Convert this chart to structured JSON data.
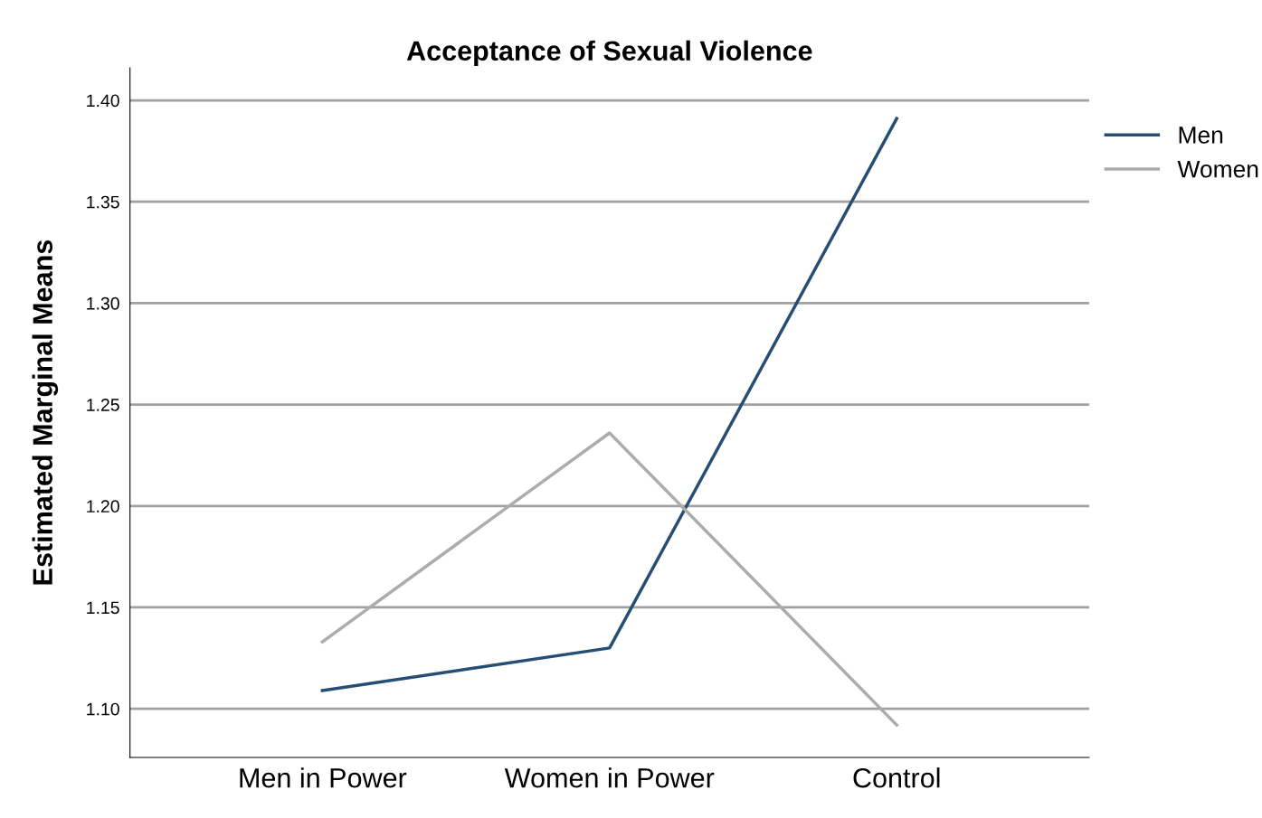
{
  "chart_data": {
    "type": "line",
    "title": "Acceptance of Sexual Violence",
    "ylabel": "Estimated Marginal Means",
    "categories": [
      "Men in Power",
      "Women in Power",
      "Control"
    ],
    "series": [
      {
        "name": "Men",
        "color": "#264d73",
        "values": [
          1.109,
          1.13,
          1.391
        ]
      },
      {
        "name": "Women",
        "color": "#acacac",
        "values": [
          1.133,
          1.236,
          1.092
        ]
      }
    ],
    "ylim": [
      1.076,
      1.416
    ],
    "yticks": [
      {
        "value": 1.1,
        "label": "1.10"
      },
      {
        "value": 1.15,
        "label": "1.15"
      },
      {
        "value": 1.2,
        "label": "1.20"
      },
      {
        "value": 1.25,
        "label": "1.25"
      },
      {
        "value": 1.3,
        "label": "1.30"
      },
      {
        "value": 1.35,
        "label": "1.35"
      },
      {
        "value": 1.4,
        "label": "1.40"
      }
    ],
    "grid": "y",
    "legend": "top right",
    "marker": "none",
    "line_style": "solid"
  }
}
